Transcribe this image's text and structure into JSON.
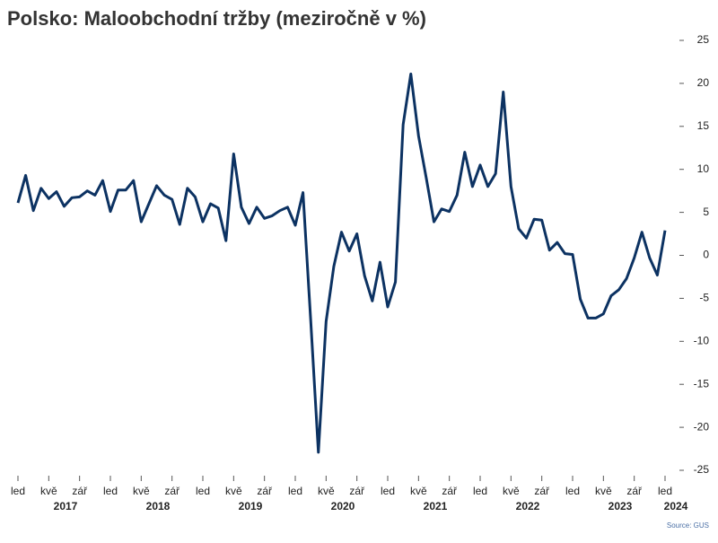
{
  "chart_data": {
    "type": "line",
    "title": "Polsko: Maloobchodní tržby (meziročně v %)",
    "source": "Source: GUS",
    "categories": [
      "led",
      null,
      null,
      null,
      "kvě",
      null,
      null,
      null,
      "zář",
      null,
      null,
      null,
      "led",
      null,
      null,
      null,
      "kvě",
      null,
      null,
      null,
      "zář",
      null,
      null,
      null,
      "led",
      null,
      null,
      null,
      "kvě",
      null,
      null,
      null,
      "zář",
      null,
      null,
      null,
      "led",
      null,
      null,
      null,
      "kvě",
      null,
      null,
      null,
      "zář",
      null,
      null,
      null,
      "led",
      null,
      null,
      null,
      "kvě",
      null,
      null,
      null,
      "zář",
      null,
      null,
      null,
      "led",
      null,
      null,
      null,
      "kvě",
      null,
      null,
      null,
      "zář",
      null,
      null,
      null,
      "led",
      null,
      null,
      null,
      "kvě",
      null,
      null,
      null,
      "zář",
      null,
      null,
      null,
      "led"
    ],
    "years": [
      "2017",
      "2018",
      "2019",
      "2020",
      "2021",
      "2022",
      "2023",
      "2024"
    ],
    "series": [
      {
        "color": "#0c3262",
        "values": [
          6.1,
          9.3,
          5.2,
          7.8,
          6.6,
          7.4,
          5.7,
          6.7,
          6.8,
          7.5,
          7.0,
          8.7,
          5.1,
          7.6,
          7.6,
          8.7,
          3.9,
          6.0,
          8.1,
          7.0,
          6.5,
          3.6,
          7.8,
          6.8,
          3.9,
          6.0,
          5.5,
          1.7,
          11.8,
          5.6,
          3.7,
          5.6,
          4.3,
          4.6,
          5.2,
          5.6,
          3.5,
          7.3,
          -7.5,
          -22.9,
          -7.7,
          -1.3,
          2.7,
          0.5,
          2.5,
          -2.4,
          -5.3,
          -0.8,
          -6.0,
          -3.1,
          15.2,
          21.1,
          13.9,
          9.0,
          3.9,
          5.4,
          5.1,
          7.0,
          12.0,
          8.0,
          10.5,
          8.0,
          9.5,
          19.0,
          8.0,
          3.1,
          2.0,
          4.2,
          4.1,
          0.6,
          1.5,
          0.2,
          0.1,
          -5.1,
          -7.3,
          -7.3,
          -6.8,
          -4.7,
          -4.0,
          -2.7,
          -0.3,
          2.7,
          -0.3,
          -2.3,
          2.9
        ]
      }
    ],
    "ylim": [
      -25,
      25
    ],
    "yticks": [
      -25,
      -20,
      -15,
      -10,
      -5,
      0,
      5,
      10,
      15,
      20,
      25
    ],
    "y_axis_side": "right"
  }
}
